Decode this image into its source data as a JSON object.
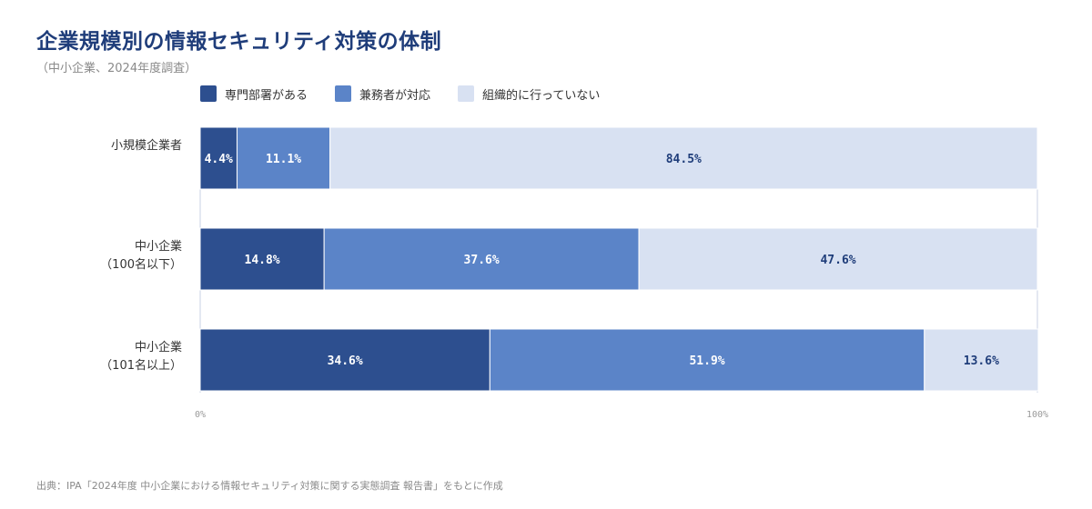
{
  "title": "企業規模別の情報セキュリティ対策の体制",
  "subtitle": "（中小企業、2024年度調査）",
  "source": "出典：IPA「2024年度 中小企業における情報セキュリティ対策に関する実態調査 報告書」をもとに作成",
  "colors": {
    "series": [
      "#2d4f8f",
      "#5b84c8",
      "#d8e1f2"
    ],
    "label_dark": "#ffffff",
    "label_light": "#1f3d7a",
    "axis_text": "#9a9a9a"
  },
  "chart_data": {
    "type": "bar",
    "orientation": "horizontal",
    "stacked": true,
    "categories": [
      [
        "小規模企業者"
      ],
      [
        "中小企業",
        "（100名以下）"
      ],
      [
        "中小企業",
        "（101名以上）"
      ]
    ],
    "series": [
      {
        "name": "専門部署がある",
        "values": [
          4.4,
          14.8,
          34.6
        ]
      },
      {
        "name": "兼務者が対応",
        "values": [
          11.1,
          37.6,
          51.9
        ]
      },
      {
        "name": "組織的に行っていない",
        "values": [
          84.5,
          47.6,
          13.6
        ]
      }
    ],
    "data_labels": [
      [
        "4.4%",
        "14.8%",
        "34.6%"
      ],
      [
        "11.1%",
        "37.6%",
        "51.9%"
      ],
      [
        "84.5%",
        "47.6%",
        "13.6%"
      ]
    ],
    "xlim": [
      0,
      100
    ],
    "x_tick_labels": [
      "0%",
      "100%"
    ],
    "legend_position": "top-left",
    "grid": false
  }
}
